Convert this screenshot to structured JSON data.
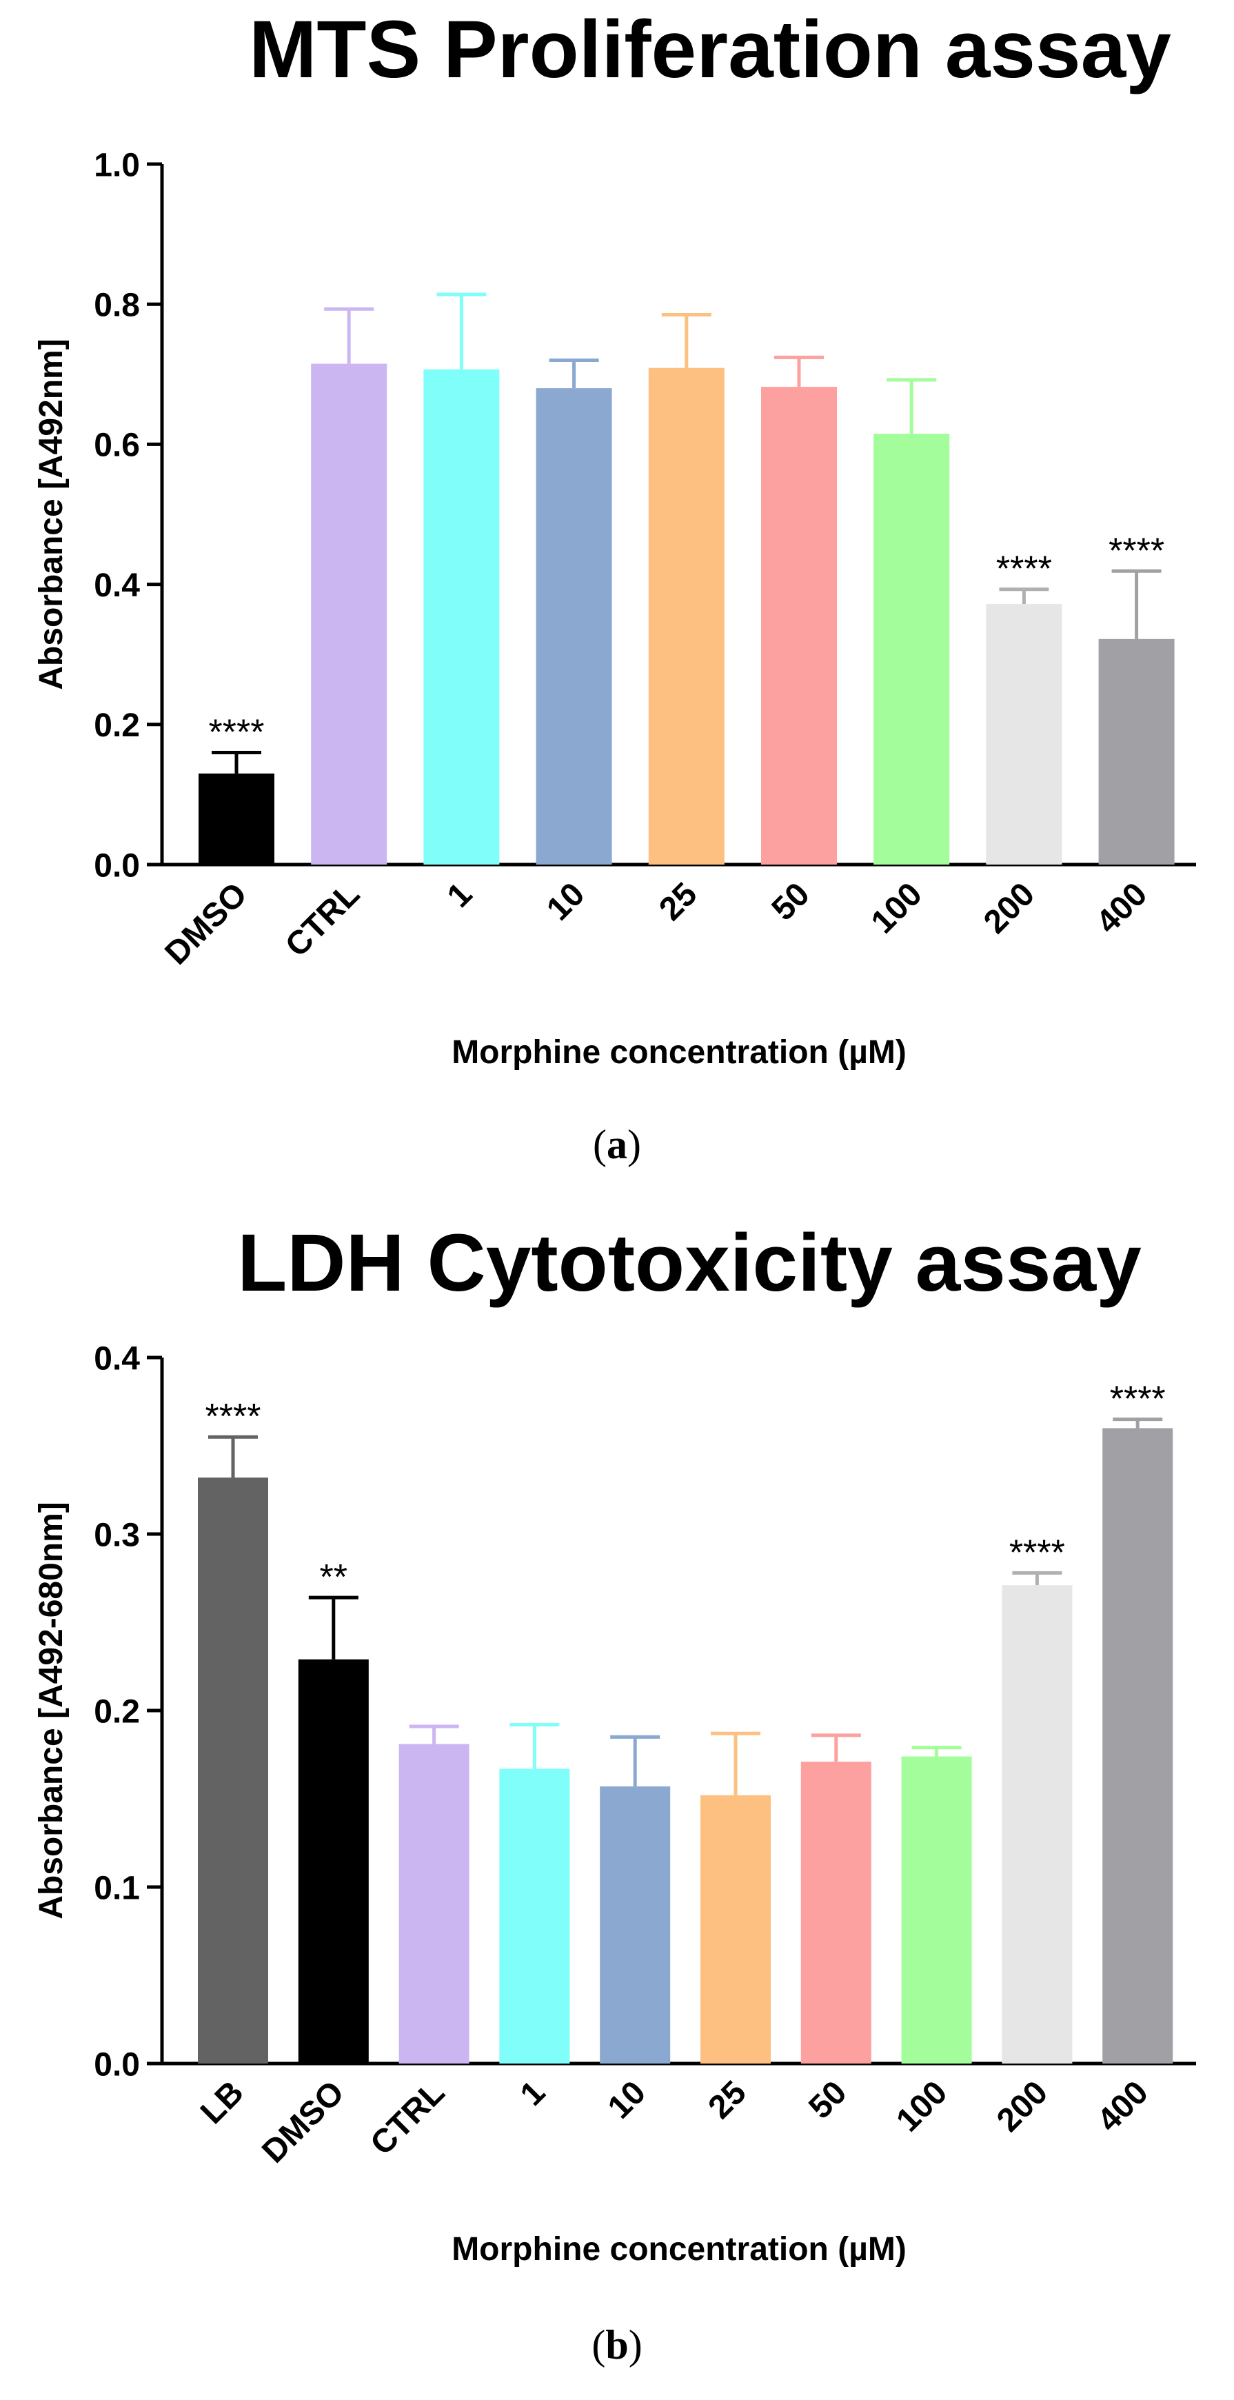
{
  "chart_data": [
    {
      "type": "bar",
      "title": "MTS Proliferation assay",
      "xlabel": "Morphine concentration (µM)",
      "ylabel": "Absorbance [A492nm]",
      "ylim": [
        0,
        1.0
      ],
      "yticks": [
        "0.0",
        "0.2",
        "0.4",
        "0.6",
        "0.8",
        "1.0"
      ],
      "ytick_values": [
        0,
        0.2,
        0.4,
        0.6,
        0.8,
        1.0
      ],
      "caption_open": "(",
      "caption_letter": "a",
      "caption_close": ")",
      "categories": [
        "DMSO",
        "CTRL",
        "1",
        "10",
        "25",
        "50",
        "100",
        "200",
        "400"
      ],
      "values": [
        0.13,
        0.715,
        0.707,
        0.68,
        0.709,
        0.682,
        0.615,
        0.372,
        0.322
      ],
      "errors": [
        0.03,
        0.078,
        0.107,
        0.04,
        0.076,
        0.042,
        0.077,
        0.021,
        0.097
      ],
      "significance": [
        "****",
        "",
        "",
        "",
        "",
        "",
        "",
        "****",
        "****"
      ],
      "colors": [
        "#000000",
        "#cbb6f2",
        "#7ffefa",
        "#8aa8d0",
        "#fdc080",
        "#fca19f",
        "#a2fd9a",
        "#e6e6e6",
        "#a1a1a5"
      ]
    },
    {
      "type": "bar",
      "title": "LDH Cytotoxicity assay",
      "xlabel": "Morphine concentration (µM)",
      "ylabel": "Absorbance [A492-680nm]",
      "ylim": [
        0,
        0.4
      ],
      "yticks": [
        "0.0",
        "0.1",
        "0.2",
        "0.3",
        "0.4"
      ],
      "ytick_values": [
        0,
        0.1,
        0.2,
        0.3,
        0.4
      ],
      "caption_open": "(",
      "caption_letter": "b",
      "caption_close": ")",
      "categories": [
        "LB",
        "DMSO",
        "CTRL",
        "1",
        "10",
        "25",
        "50",
        "100",
        "200",
        "400"
      ],
      "values": [
        0.332,
        0.229,
        0.181,
        0.167,
        0.157,
        0.152,
        0.171,
        0.174,
        0.271,
        0.36
      ],
      "errors": [
        0.023,
        0.035,
        0.01,
        0.025,
        0.028,
        0.035,
        0.015,
        0.005,
        0.007,
        0.005
      ],
      "significance": [
        "****",
        "**",
        "",
        "",
        "",
        "",
        "",
        "",
        "****",
        "****"
      ],
      "colors": [
        "#636363",
        "#000000",
        "#cbb6f2",
        "#7ffefa",
        "#8aa8d0",
        "#fdc080",
        "#fca19f",
        "#a2fd9a",
        "#e6e6e6",
        "#a1a1a5"
      ]
    }
  ]
}
